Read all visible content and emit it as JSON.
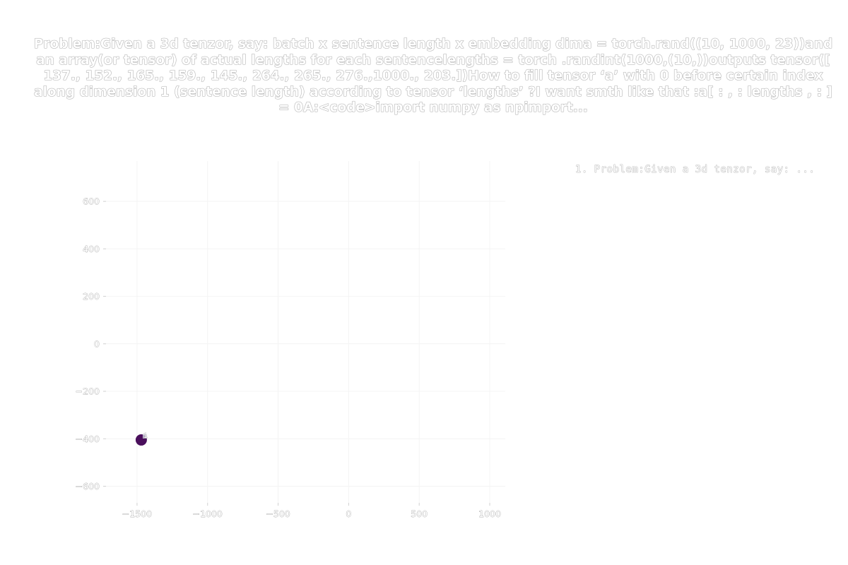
{
  "chart_data": {
    "type": "scatter",
    "title": "Problem:Given a 3d tenzor, say: batch x sentence length x embedding dima = torch.rand((10, 1000, 23))and an array(or tensor) of actual lengths for each sentencelengths =  torch .randint(1000,(10,))outputs tensor([ 137., 152., 165., 159., 145., 264., 265., 276.,1000., 203.])How to fill tensor ‘a’ with 0 before certain index along dimension 1 (sentence length) according to tensor ‘lengths’ ?I want smth like that :a[ : , : lengths , : ]  = 0A:<code>import numpy as npimport...",
    "xlabel": "",
    "ylabel": "",
    "xlim": [
      -1720,
      1110
    ],
    "ylim": [
      -670,
      770
    ],
    "xticks": [
      -1500,
      -1000,
      -500,
      0,
      500,
      1000
    ],
    "xtick_labels": [
      "−1500",
      "−1000",
      "−500",
      "0",
      "500",
      "1000"
    ],
    "yticks": [
      -600,
      -400,
      -200,
      0,
      200,
      400,
      600
    ],
    "ytick_labels": [
      "−600",
      "−400",
      "−200",
      "0",
      "200",
      "400",
      "600"
    ],
    "grid": true,
    "legend_placement": "top-right",
    "points": [
      {
        "x": -1470,
        "y": -405,
        "label": "1",
        "color": "#4a0f5c"
      }
    ],
    "legend": [
      {
        "text": "1. Problem:Given a 3d tenzor, say: ..."
      }
    ]
  }
}
